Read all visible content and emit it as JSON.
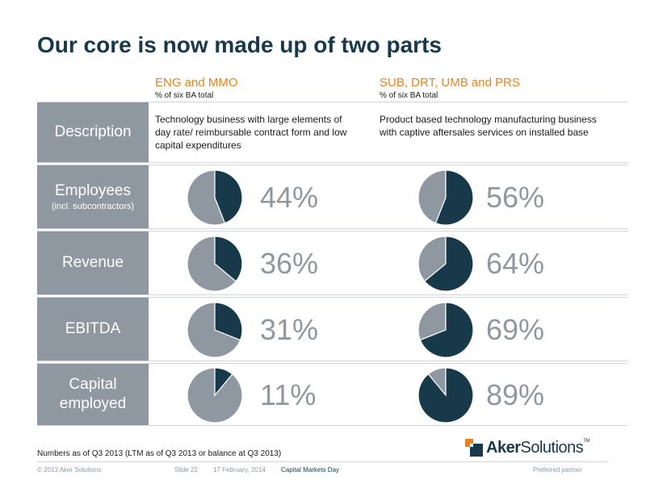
{
  "title": "Our core is now made up of two parts",
  "columns": [
    {
      "name": "ENG and MMO",
      "sub": "% of six BA total",
      "description": "Technology business with large elements of day rate/ reimbursable contract form and low capital expenditures"
    },
    {
      "name": "SUB, DRT, UMB and PRS",
      "sub": "% of six BA total",
      "description": "Product based technology manufacturing business with captive aftersales services on installed base"
    }
  ],
  "rows": {
    "description": {
      "label": "Description"
    },
    "employees": {
      "label": "Employees",
      "sublabel": "(incl. subcontractors)"
    },
    "revenue": {
      "label": "Revenue"
    },
    "ebitda": {
      "label": "EBITDA"
    },
    "capital": {
      "label_line1": "Capital",
      "label_line2": "employed"
    }
  },
  "chart_data": {
    "type": "pie",
    "colors": {
      "highlight": "#17394a",
      "rest": "#8f98a0"
    },
    "categories": [
      "Employees (incl. subcontractors)",
      "Revenue",
      "EBITDA",
      "Capital employed"
    ],
    "series": [
      {
        "name": "ENG and MMO",
        "values": [
          44,
          36,
          31,
          11
        ],
        "labels": [
          "44%",
          "36%",
          "31%",
          "11%"
        ]
      },
      {
        "name": "SUB, DRT, UMB and PRS",
        "values": [
          56,
          64,
          69,
          89
        ],
        "labels": [
          "56%",
          "64%",
          "69%",
          "89%"
        ]
      }
    ]
  },
  "footnote": "Numbers as of Q3 2013 (LTM as of Q3 2013 or balance at Q3 2013)",
  "footer": {
    "copyright": "© 2013 Aker Solutions",
    "slide": "Slide 22",
    "date": "17 February, 2014",
    "event": "Capital Markets Day",
    "partner": "Preferred partner"
  },
  "logo": {
    "part1": "Aker",
    "part2": "Solutions",
    "tm": "TM"
  }
}
